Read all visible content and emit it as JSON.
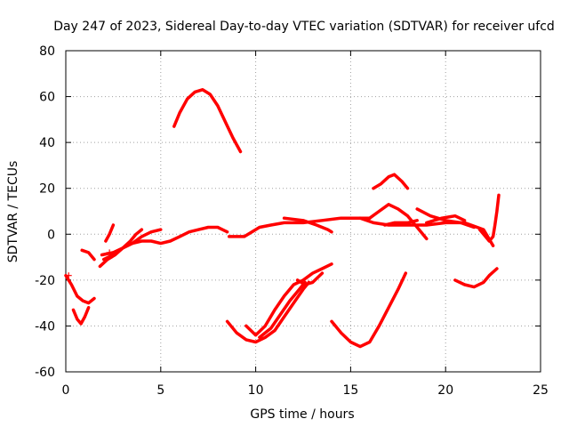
{
  "chart_data": {
    "type": "scatter",
    "title": "Day 247 of 2023, Sidereal Day-to-day VTEC variation (SDTVAR) for receiver ufcd",
    "xlabel": "GPS time / hours",
    "ylabel": "SDTVAR / TECUs",
    "xlim": [
      0,
      25
    ],
    "ylim": [
      -60,
      80
    ],
    "xticks": [
      0,
      5,
      10,
      15,
      20,
      25
    ],
    "yticks": [
      -60,
      -40,
      -20,
      0,
      20,
      40,
      60,
      80
    ],
    "xtick_labels": [
      "0",
      "5",
      "10",
      "15",
      "20",
      "25"
    ],
    "ytick_labels": [
      "-60",
      "-40",
      "-20",
      "0",
      "20",
      "40",
      "60",
      "80"
    ],
    "grid": true,
    "marker": "+",
    "color": "#ff0000",
    "series": [
      {
        "name": "s1",
        "points": [
          [
            0.0,
            -18
          ],
          [
            0.3,
            -22
          ],
          [
            0.6,
            -27
          ],
          [
            0.9,
            -29
          ],
          [
            1.2,
            -30
          ],
          [
            1.5,
            -28
          ]
        ]
      },
      {
        "name": "s2",
        "points": [
          [
            0.4,
            -33
          ],
          [
            0.6,
            -37
          ],
          [
            0.8,
            -39
          ],
          [
            1.0,
            -36
          ],
          [
            1.2,
            -32
          ]
        ]
      },
      {
        "name": "s3",
        "points": [
          [
            0.85,
            -7
          ],
          [
            1.2,
            -8
          ],
          [
            1.5,
            -11
          ]
        ]
      },
      {
        "name": "s4",
        "points": [
          [
            1.8,
            -14
          ],
          [
            2.2,
            -11
          ],
          [
            2.6,
            -9
          ],
          [
            3.0,
            -6
          ],
          [
            3.4,
            -3
          ],
          [
            3.7,
            0
          ],
          [
            4.0,
            2
          ]
        ]
      },
      {
        "name": "s5",
        "points": [
          [
            1.9,
            -9
          ],
          [
            2.5,
            -8
          ],
          [
            3.0,
            -6
          ],
          [
            3.5,
            -4
          ],
          [
            4.0,
            -1
          ],
          [
            4.5,
            1
          ],
          [
            5.0,
            2
          ]
        ]
      },
      {
        "name": "s6",
        "points": [
          [
            2.0,
            -11
          ],
          [
            2.5,
            -9
          ],
          [
            3.0,
            -6
          ],
          [
            3.5,
            -4
          ],
          [
            4.0,
            -3
          ],
          [
            4.5,
            -3
          ],
          [
            5.0,
            -4
          ],
          [
            5.5,
            -3
          ],
          [
            6.0,
            -1
          ],
          [
            6.5,
            1
          ],
          [
            7.0,
            2
          ],
          [
            7.5,
            3
          ],
          [
            8.0,
            3
          ],
          [
            8.5,
            1
          ]
        ]
      },
      {
        "name": "s7",
        "points": [
          [
            2.1,
            -3
          ],
          [
            2.3,
            0
          ],
          [
            2.5,
            4
          ]
        ]
      },
      {
        "name": "s8",
        "points": [
          [
            5.7,
            47
          ],
          [
            6.0,
            53
          ],
          [
            6.4,
            59
          ],
          [
            6.8,
            62
          ],
          [
            7.2,
            63
          ],
          [
            7.6,
            61
          ],
          [
            8.0,
            56
          ],
          [
            8.4,
            49
          ],
          [
            8.8,
            42
          ],
          [
            9.2,
            36
          ]
        ]
      },
      {
        "name": "s9",
        "points": [
          [
            8.6,
            -1
          ],
          [
            9.0,
            -1
          ],
          [
            9.4,
            -1
          ],
          [
            9.8,
            1
          ],
          [
            10.2,
            3
          ],
          [
            10.8,
            4
          ],
          [
            11.5,
            5
          ],
          [
            12.5,
            5
          ],
          [
            13.5,
            6
          ],
          [
            14.5,
            7
          ],
          [
            15.5,
            7
          ],
          [
            16.0,
            7
          ]
        ]
      },
      {
        "name": "s10",
        "points": [
          [
            11.5,
            7
          ],
          [
            12.5,
            6
          ],
          [
            13.2,
            4
          ],
          [
            13.8,
            2
          ],
          [
            14.0,
            1
          ]
        ]
      },
      {
        "name": "s11",
        "points": [
          [
            16.0,
            7
          ],
          [
            16.5,
            10
          ],
          [
            17.0,
            13
          ],
          [
            17.5,
            11
          ],
          [
            18.0,
            8
          ],
          [
            18.5,
            3
          ],
          [
            19.0,
            -2
          ]
        ]
      },
      {
        "name": "s12",
        "points": [
          [
            15.5,
            7
          ],
          [
            16.2,
            5
          ],
          [
            17.0,
            4
          ],
          [
            18.0,
            4
          ],
          [
            19.0,
            4
          ],
          [
            20.0,
            5
          ],
          [
            21.0,
            5
          ],
          [
            22.0,
            2
          ],
          [
            22.5,
            -5
          ]
        ]
      },
      {
        "name": "s13",
        "points": [
          [
            16.8,
            4
          ],
          [
            17.3,
            5
          ],
          [
            18.0,
            5
          ],
          [
            18.5,
            6
          ]
        ]
      },
      {
        "name": "s14",
        "points": [
          [
            18.5,
            11
          ],
          [
            19.2,
            8
          ],
          [
            20.0,
            6
          ],
          [
            20.8,
            5
          ],
          [
            21.5,
            3
          ]
        ]
      },
      {
        "name": "s15",
        "points": [
          [
            19.0,
            5
          ],
          [
            19.8,
            7
          ],
          [
            20.5,
            8
          ],
          [
            21.0,
            6
          ]
        ]
      },
      {
        "name": "s16",
        "points": [
          [
            16.2,
            20
          ],
          [
            16.6,
            22
          ],
          [
            17.0,
            25
          ],
          [
            17.3,
            26
          ],
          [
            17.7,
            23
          ],
          [
            18.0,
            20
          ]
        ]
      },
      {
        "name": "s17",
        "points": [
          [
            8.5,
            -38
          ],
          [
            9.0,
            -43
          ],
          [
            9.5,
            -46
          ],
          [
            10.0,
            -47
          ],
          [
            10.5,
            -45
          ],
          [
            11.0,
            -42
          ],
          [
            11.5,
            -36
          ],
          [
            12.0,
            -30
          ],
          [
            12.5,
            -24
          ],
          [
            12.8,
            -21
          ]
        ]
      },
      {
        "name": "s18",
        "points": [
          [
            9.5,
            -40
          ],
          [
            10.0,
            -44
          ],
          [
            10.5,
            -40
          ],
          [
            11.0,
            -33
          ],
          [
            11.5,
            -27
          ],
          [
            12.0,
            -22
          ],
          [
            12.5,
            -20
          ],
          [
            13.0,
            -17
          ],
          [
            13.5,
            -15
          ],
          [
            14.0,
            -13
          ]
        ]
      },
      {
        "name": "s19",
        "points": [
          [
            10.2,
            -45
          ],
          [
            10.8,
            -41
          ],
          [
            11.3,
            -35
          ],
          [
            11.8,
            -29
          ],
          [
            12.3,
            -24
          ],
          [
            12.6,
            -21
          ]
        ]
      },
      {
        "name": "s20",
        "points": [
          [
            12.2,
            -20
          ],
          [
            12.6,
            -22
          ],
          [
            13.0,
            -21
          ],
          [
            13.5,
            -17
          ]
        ]
      },
      {
        "name": "s21",
        "points": [
          [
            14.0,
            -38
          ],
          [
            14.5,
            -43
          ],
          [
            15.0,
            -47
          ],
          [
            15.5,
            -49
          ],
          [
            16.0,
            -47
          ],
          [
            16.5,
            -40
          ],
          [
            17.0,
            -32
          ],
          [
            17.5,
            -24
          ],
          [
            17.9,
            -17
          ]
        ]
      },
      {
        "name": "s22",
        "points": [
          [
            20.5,
            -20
          ],
          [
            21.0,
            -22
          ],
          [
            21.5,
            -23
          ],
          [
            22.0,
            -21
          ],
          [
            22.3,
            -18
          ],
          [
            22.7,
            -15
          ]
        ]
      },
      {
        "name": "s23",
        "points": [
          [
            21.8,
            2
          ],
          [
            22.1,
            -1
          ],
          [
            22.3,
            -3
          ],
          [
            22.5,
            -1
          ],
          [
            22.6,
            4
          ],
          [
            22.7,
            10
          ],
          [
            22.8,
            17
          ]
        ]
      }
    ],
    "isolated_points": [
      [
        0.15,
        -18
      ],
      [
        2.3,
        -8
      ]
    ]
  }
}
